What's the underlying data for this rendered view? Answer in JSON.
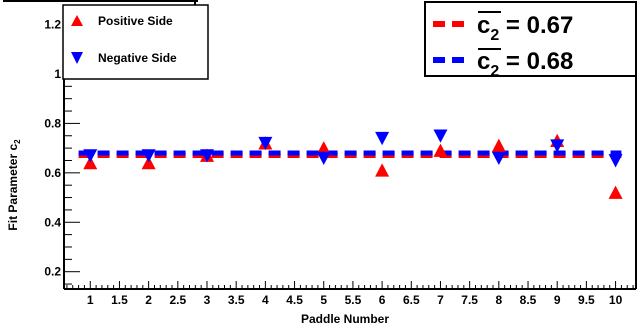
{
  "chart_data": {
    "type": "scatter",
    "xlabel": "Paddle Number",
    "ylabel_main": "Fit Parameter c",
    "ylabel_sub": "2",
    "xlim": [
      0.55,
      10.35
    ],
    "ylim": [
      0.13,
      1.275
    ],
    "x_ticks": [
      1,
      1.5,
      2,
      2.5,
      3,
      3.5,
      4,
      4.5,
      5,
      5.5,
      6,
      6.5,
      7,
      7.5,
      8,
      8.5,
      9,
      9.5,
      10
    ],
    "x_tick_labels": [
      "1",
      "1.5",
      "2",
      "2.5",
      "3",
      "3.5",
      "4",
      "4.5",
      "5",
      "5.5",
      "6",
      "6.5",
      "7",
      "7.5",
      "8",
      "8.5",
      "9",
      "9.5",
      "10"
    ],
    "y_ticks": [
      0.2,
      0.4,
      0.6,
      0.8,
      1.0,
      1.2
    ],
    "y_tick_labels": [
      "0.2",
      "0.4",
      "0.6",
      "0.8",
      "1",
      "1.2"
    ],
    "grid": false,
    "legend_placement": "top-left",
    "series": [
      {
        "name": "Positive Side",
        "marker": "triangle-up",
        "color": "#ff0000",
        "x": [
          1,
          2,
          3,
          4,
          5,
          6,
          7,
          8,
          9,
          10
        ],
        "values": [
          0.64,
          0.64,
          0.67,
          0.72,
          0.7,
          0.61,
          0.69,
          0.71,
          0.73,
          0.52
        ]
      },
      {
        "name": "Negative Side",
        "marker": "triangle-down",
        "color": "#0000ff",
        "x": [
          1,
          2,
          3,
          4,
          5,
          6,
          7,
          8,
          9,
          10
        ],
        "values": [
          0.67,
          0.67,
          0.67,
          0.72,
          0.66,
          0.74,
          0.75,
          0.66,
          0.71,
          0.65
        ]
      }
    ],
    "mean_lines": [
      {
        "label_sym": "c",
        "label_sub": "2",
        "label_value": " = 0.67",
        "value": 0.67,
        "color": "#ff0000"
      },
      {
        "label_sym": "c",
        "label_sub": "2",
        "label_value": " = 0.68",
        "value": 0.68,
        "color": "#0000ff"
      }
    ]
  }
}
